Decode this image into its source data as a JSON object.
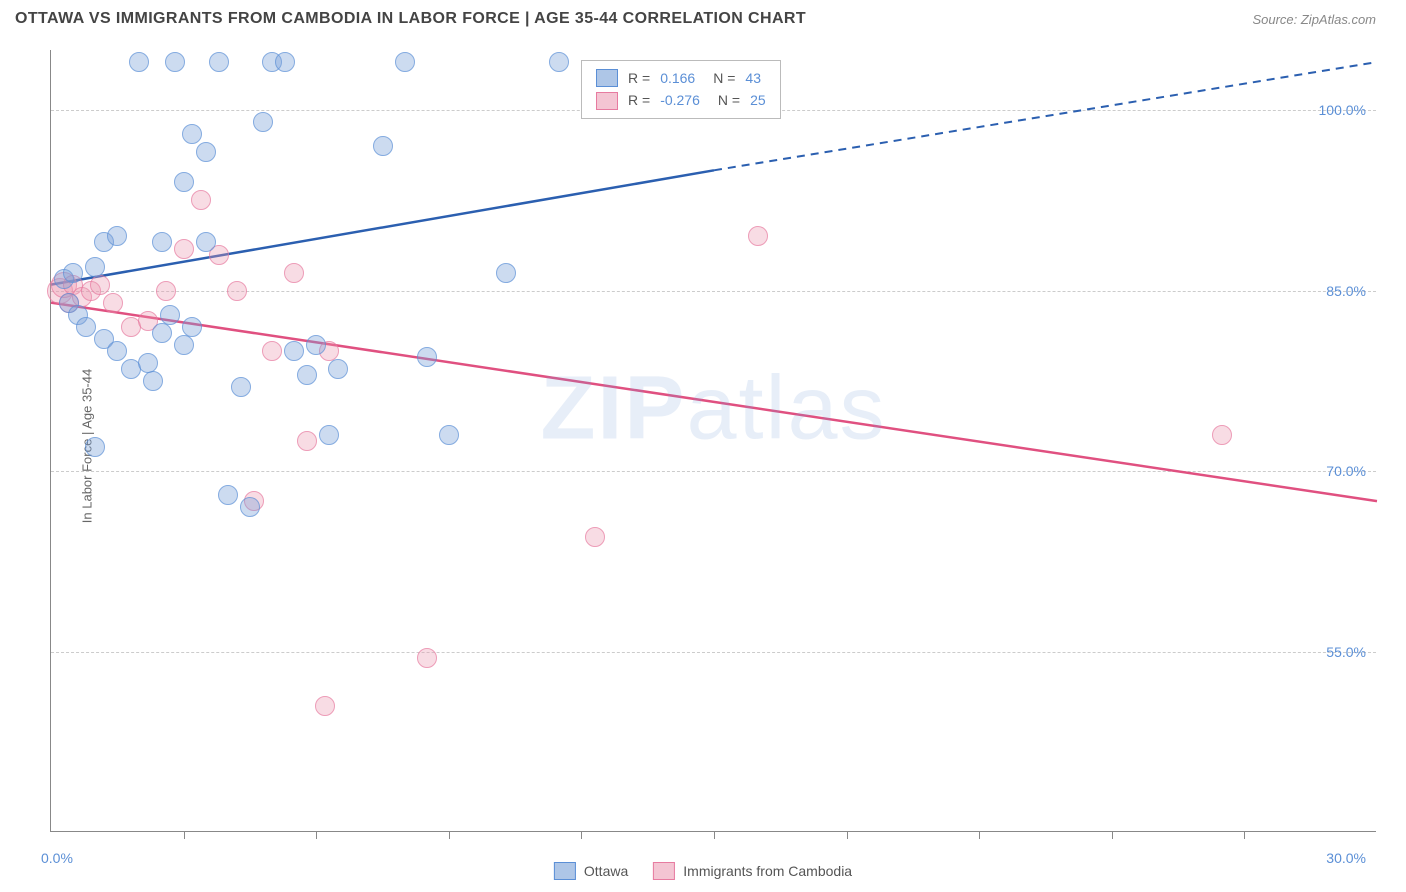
{
  "header": {
    "title": "OTTAWA VS IMMIGRANTS FROM CAMBODIA IN LABOR FORCE | AGE 35-44 CORRELATION CHART",
    "source": "Source: ZipAtlas.com"
  },
  "y_axis": {
    "label": "In Labor Force | Age 35-44",
    "ticks": [
      {
        "value": 100.0,
        "label": "100.0%"
      },
      {
        "value": 85.0,
        "label": "85.0%"
      },
      {
        "value": 70.0,
        "label": "70.0%"
      },
      {
        "value": 55.0,
        "label": "55.0%"
      }
    ],
    "min": 40.0,
    "max": 105.0
  },
  "x_axis": {
    "min": 0.0,
    "max": 30.0,
    "left_label": "0.0%",
    "right_label": "30.0%",
    "tick_positions": [
      3,
      6,
      9,
      12,
      15,
      18,
      21,
      24,
      27
    ]
  },
  "series": {
    "ottawa": {
      "label": "Ottawa",
      "color_fill": "rgba(120,160,215,0.5)",
      "color_stroke": "#5b8fd6",
      "R": "0.166",
      "N": "43",
      "trend": {
        "start": {
          "x": 0,
          "y": 85.5
        },
        "solid_end": {
          "x": 15,
          "y": 95.0
        },
        "dash_end": {
          "x": 30,
          "y": 104.0
        },
        "line_color": "#2b5fb0"
      },
      "points": [
        {
          "x": 0.3,
          "y": 86
        },
        {
          "x": 0.4,
          "y": 84
        },
        {
          "x": 0.5,
          "y": 86.5
        },
        {
          "x": 0.6,
          "y": 83
        },
        {
          "x": 0.8,
          "y": 82
        },
        {
          "x": 1.0,
          "y": 87
        },
        {
          "x": 1.0,
          "y": 72
        },
        {
          "x": 1.2,
          "y": 89
        },
        {
          "x": 1.2,
          "y": 81
        },
        {
          "x": 1.5,
          "y": 89.5
        },
        {
          "x": 1.5,
          "y": 80
        },
        {
          "x": 1.8,
          "y": 78.5
        },
        {
          "x": 2.0,
          "y": 104
        },
        {
          "x": 2.2,
          "y": 79
        },
        {
          "x": 2.3,
          "y": 77.5
        },
        {
          "x": 2.5,
          "y": 89
        },
        {
          "x": 2.5,
          "y": 81.5
        },
        {
          "x": 2.7,
          "y": 83
        },
        {
          "x": 2.8,
          "y": 104
        },
        {
          "x": 3.0,
          "y": 94
        },
        {
          "x": 3.0,
          "y": 80.5
        },
        {
          "x": 3.2,
          "y": 98
        },
        {
          "x": 3.2,
          "y": 82
        },
        {
          "x": 3.5,
          "y": 96.5
        },
        {
          "x": 3.5,
          "y": 89
        },
        {
          "x": 3.8,
          "y": 104
        },
        {
          "x": 4.0,
          "y": 68
        },
        {
          "x": 4.3,
          "y": 77
        },
        {
          "x": 4.5,
          "y": 67
        },
        {
          "x": 4.8,
          "y": 99
        },
        {
          "x": 5.0,
          "y": 104
        },
        {
          "x": 5.3,
          "y": 104
        },
        {
          "x": 5.5,
          "y": 80
        },
        {
          "x": 5.8,
          "y": 78
        },
        {
          "x": 6.0,
          "y": 80.5
        },
        {
          "x": 6.3,
          "y": 73
        },
        {
          "x": 6.5,
          "y": 78.5
        },
        {
          "x": 7.5,
          "y": 97
        },
        {
          "x": 8.0,
          "y": 104
        },
        {
          "x": 8.5,
          "y": 79.5
        },
        {
          "x": 9.0,
          "y": 73
        },
        {
          "x": 10.3,
          "y": 86.5
        },
        {
          "x": 11.5,
          "y": 104
        }
      ]
    },
    "cambodia": {
      "label": "Immigrants from Cambodia",
      "color_fill": "rgba(235,150,175,0.45)",
      "color_stroke": "#e77ba0",
      "R": "-0.276",
      "N": "25",
      "trend": {
        "start": {
          "x": 0,
          "y": 84.0
        },
        "end": {
          "x": 30,
          "y": 67.5
        },
        "line_color": "#e05080"
      },
      "points": [
        {
          "x": 0.2,
          "y": 85,
          "big": true
        },
        {
          "x": 0.3,
          "y": 85.5,
          "big": true
        },
        {
          "x": 0.4,
          "y": 84
        },
        {
          "x": 0.5,
          "y": 85.5
        },
        {
          "x": 0.7,
          "y": 84.5
        },
        {
          "x": 0.9,
          "y": 85
        },
        {
          "x": 1.1,
          "y": 85.5
        },
        {
          "x": 1.4,
          "y": 84
        },
        {
          "x": 1.8,
          "y": 82
        },
        {
          "x": 2.2,
          "y": 82.5
        },
        {
          "x": 2.6,
          "y": 85
        },
        {
          "x": 3.0,
          "y": 88.5
        },
        {
          "x": 3.4,
          "y": 92.5
        },
        {
          "x": 3.8,
          "y": 88
        },
        {
          "x": 4.2,
          "y": 85
        },
        {
          "x": 4.6,
          "y": 67.5
        },
        {
          "x": 5.0,
          "y": 80
        },
        {
          "x": 5.5,
          "y": 86.5
        },
        {
          "x": 5.8,
          "y": 72.5
        },
        {
          "x": 6.2,
          "y": 50.5
        },
        {
          "x": 6.3,
          "y": 80
        },
        {
          "x": 8.5,
          "y": 54.5
        },
        {
          "x": 12.3,
          "y": 64.5
        },
        {
          "x": 16.0,
          "y": 89.5
        },
        {
          "x": 26.5,
          "y": 73
        }
      ]
    }
  },
  "watermark": {
    "zip": "ZIP",
    "atlas": "atlas"
  },
  "stat_labels": {
    "R": "R =",
    "N": "N ="
  },
  "chart_style": {
    "background_color": "#ffffff",
    "grid_color": "#cccccc",
    "axis_color": "#888888",
    "title_color": "#444444",
    "label_color": "#5b8fd6",
    "marker_size": 18,
    "marker_size_big": 24,
    "title_fontsize": 16,
    "axis_fontsize": 14
  }
}
